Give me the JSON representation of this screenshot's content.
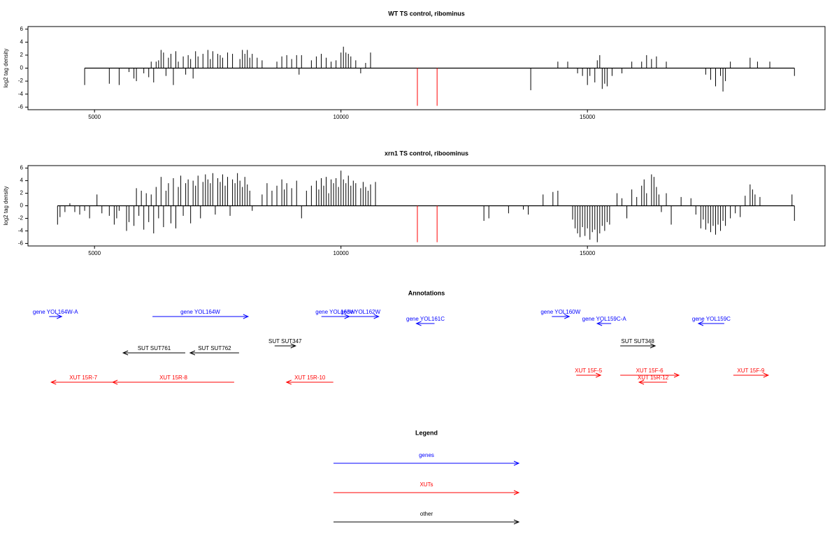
{
  "chart_data": [
    {
      "type": "bar",
      "title": "WT TS control, ribominus",
      "ylabel": "log2 tag density",
      "xlim": [
        3650,
        19820
      ],
      "xticks": [
        5000,
        10000,
        15000
      ],
      "ylim": [
        -6.4,
        6.4
      ],
      "yticks": [
        -6,
        -4,
        -2,
        0,
        2,
        4,
        6
      ],
      "series": [
        {
          "color": "#000000",
          "x": [
            4800,
            5300,
            5500,
            5700,
            5800,
            5850,
            6000,
            6100,
            6150,
            6200,
            6250,
            6300,
            6350,
            6400,
            6450,
            6500,
            6550,
            6600,
            6650,
            6700,
            6800,
            6850,
            6900,
            6950,
            7000,
            7050,
            7100,
            7200,
            7300,
            7350,
            7400,
            7500,
            7550,
            7600,
            7700,
            7800,
            7950,
            8000,
            8050,
            8100,
            8150,
            8200,
            8300,
            8400,
            8700,
            8800,
            8900,
            9000,
            9100,
            9150,
            9200,
            9400,
            9500,
            9600,
            9700,
            9800,
            9900,
            10000,
            10050,
            10100,
            10150,
            10200,
            10300,
            10400,
            10500,
            10600,
            13850,
            14400,
            14600,
            14800,
            14900,
            15000,
            15050,
            15150,
            15200,
            15250,
            15300,
            15350,
            15400,
            15500,
            15700,
            15900,
            16100,
            16200,
            16300,
            16400,
            16600,
            17400,
            17500,
            17600,
            17700,
            17750,
            17800,
            17900,
            18300,
            18450,
            18700,
            19200
          ],
          "values": [
            -2.6,
            -2.4,
            -2.6,
            -0.6,
            -1.6,
            -2,
            -0.8,
            -1.4,
            1,
            -2.2,
            1,
            1.2,
            2.8,
            2.4,
            -1.2,
            1.6,
            2.2,
            -2.6,
            2.6,
            1,
            1.8,
            -1,
            2,
            1.4,
            -1.6,
            2.6,
            1.8,
            2.2,
            2.8,
            1.4,
            2.6,
            2.2,
            2,
            1.6,
            2.4,
            2.2,
            1.4,
            2.8,
            2.2,
            2.8,
            1.6,
            2.2,
            1.6,
            1.2,
            1,
            1.8,
            2,
            1.4,
            2,
            -1,
            2,
            1.2,
            1.8,
            2.2,
            1.6,
            1,
            1.2,
            2.4,
            3.3,
            2.4,
            2.2,
            1.8,
            1.2,
            -0.8,
            0.8,
            2.4,
            -3.4,
            1,
            1,
            -0.8,
            -1.2,
            -2.6,
            -1.2,
            -2.2,
            1.2,
            2,
            -3.2,
            -2.4,
            -2.8,
            -1.2,
            -0.8,
            1,
            1,
            2,
            1.4,
            1.8,
            1,
            -1,
            -1.8,
            -2.8,
            -1.2,
            -3.6,
            -2,
            1,
            1.6,
            1,
            1,
            -1.2
          ]
        },
        {
          "color": "#ff0000",
          "x": [
            11550,
            11950
          ],
          "values": [
            -5.8,
            -5.8
          ]
        }
      ]
    },
    {
      "type": "bar",
      "title": "xrn1 TS control, riboominus",
      "ylabel": "log2 tag density",
      "xlim": [
        3650,
        19820
      ],
      "xticks": [
        5000,
        10000,
        15000
      ],
      "ylim": [
        -6.4,
        6.4
      ],
      "yticks": [
        -6,
        -4,
        -2,
        0,
        2,
        4,
        6
      ],
      "series": [
        {
          "color": "#000000",
          "x": [
            4250,
            4300,
            4400,
            4500,
            4600,
            4700,
            4800,
            4900,
            5050,
            5150,
            5300,
            5400,
            5450,
            5500,
            5650,
            5700,
            5800,
            5850,
            5900,
            5950,
            6000,
            6050,
            6100,
            6150,
            6200,
            6250,
            6300,
            6350,
            6400,
            6450,
            6500,
            6550,
            6600,
            6650,
            6700,
            6750,
            6800,
            6850,
            6900,
            6950,
            7000,
            7050,
            7100,
            7150,
            7200,
            7250,
            7300,
            7350,
            7400,
            7450,
            7500,
            7550,
            7600,
            7650,
            7700,
            7750,
            7800,
            7850,
            7900,
            7950,
            8000,
            8050,
            8100,
            8150,
            8200,
            8400,
            8500,
            8600,
            8700,
            8800,
            8850,
            8900,
            9000,
            9100,
            9200,
            9300,
            9400,
            9500,
            9550,
            9600,
            9650,
            9700,
            9750,
            9800,
            9850,
            9900,
            9950,
            10000,
            10050,
            10100,
            10150,
            10200,
            10250,
            10300,
            10400,
            10450,
            10500,
            10550,
            10600,
            10700,
            12900,
            13000,
            13400,
            13700,
            13800,
            14100,
            14300,
            14400,
            14700,
            14750,
            14800,
            14850,
            14900,
            14950,
            15000,
            15050,
            15100,
            15150,
            15200,
            15250,
            15300,
            15350,
            15400,
            15450,
            15600,
            15700,
            15800,
            15900,
            16000,
            16100,
            16150,
            16200,
            16300,
            16350,
            16400,
            16450,
            16500,
            16600,
            16700,
            16900,
            17100,
            17200,
            17300,
            17350,
            17400,
            17450,
            17500,
            17550,
            17600,
            17650,
            17700,
            17750,
            17800,
            17900,
            18000,
            18100,
            18200,
            18300,
            18350,
            18400,
            18500,
            19150,
            19200
          ],
          "values": [
            -3,
            -1.8,
            -1,
            0.4,
            -1,
            -1.4,
            -0.8,
            -2,
            1.8,
            -1.2,
            -1.6,
            -3,
            -2,
            -0.8,
            -4,
            -2.6,
            -3.2,
            2.8,
            -1.6,
            2.4,
            -3.8,
            2,
            -2.6,
            1.8,
            -4.4,
            3,
            -2,
            4.6,
            -3.4,
            2.4,
            3.6,
            -2.8,
            4.4,
            -3.6,
            3,
            4.8,
            -1.6,
            3.6,
            4.2,
            -2.8,
            4,
            3.2,
            4.8,
            -2,
            3.8,
            5,
            4.2,
            3.6,
            5.2,
            -1.4,
            4.4,
            3.8,
            5,
            3.2,
            4.6,
            -1.6,
            4.2,
            3.6,
            5.2,
            4,
            3,
            4.6,
            3.4,
            2.4,
            -0.8,
            1.8,
            3.6,
            2.4,
            3.2,
            4.2,
            2.6,
            3.6,
            2.8,
            4,
            -2,
            2.4,
            3.2,
            4,
            2.6,
            4.4,
            3.2,
            4.6,
            2,
            4.2,
            3.6,
            4.4,
            3,
            5.6,
            4.2,
            3.6,
            4.8,
            3.2,
            4,
            3.6,
            2.8,
            3.8,
            3,
            2.4,
            3.4,
            3.8,
            -2.4,
            -2,
            -1.2,
            -0.6,
            -1.4,
            1.8,
            2.2,
            2.4,
            -2.2,
            -3.6,
            -4.4,
            -5,
            -3.4,
            -4.8,
            -3.6,
            -5.4,
            -4.2,
            -3.8,
            -5.8,
            -4.4,
            -3.2,
            -4,
            -2.6,
            -3,
            2,
            1.2,
            -2,
            2.6,
            1.4,
            3.2,
            4.2,
            2,
            5,
            4.6,
            3,
            1.8,
            -1,
            2,
            -3,
            1.4,
            1.2,
            -1.4,
            -3.6,
            -2.2,
            -3.8,
            -2.8,
            -4.2,
            -3.2,
            -4.6,
            -3,
            -4,
            -2.4,
            -3.2,
            -2,
            -1.2,
            -1.8,
            1.6,
            3.4,
            2.6,
            1.8,
            1.4,
            1.8,
            -2.4
          ]
        },
        {
          "color": "#ff0000",
          "x": [
            11550,
            11950
          ],
          "values": [
            -5.8,
            -5.8
          ]
        }
      ]
    }
  ],
  "annotations": {
    "title": "Annotations",
    "tracks": [
      {
        "color": "#0000ff",
        "features": [
          {
            "label": "gene YOL164W-A",
            "start": 4079,
            "end": 4334
          },
          {
            "label": "gene YOL164W",
            "start": 6176,
            "end": 8116
          },
          {
            "label": "gene YOL163W",
            "start": 9603,
            "end": 10170
          },
          {
            "label": "gene YOL162W",
            "start": 10028,
            "end": 10765
          },
          {
            "label": "gene YOL161C",
            "start": 11898,
            "end": 11530
          },
          {
            "label": "gene YOL160W",
            "start": 14278,
            "end": 14632
          },
          {
            "label": "gene YOL159C-A",
            "start": 15482,
            "end": 15198
          },
          {
            "label": "gene YOL159C",
            "start": 17776,
            "end": 17252
          }
        ]
      },
      {
        "color": "#000000",
        "features": [
          {
            "label": "SUT SUT761",
            "start": 6841,
            "end": 5581
          },
          {
            "label": "SUT SUT762",
            "start": 7932,
            "end": 6940
          },
          {
            "label": "SUT SUT347",
            "start": 8654,
            "end": 9079
          },
          {
            "label": "SUT SUT348",
            "start": 15666,
            "end": 16374
          }
        ]
      },
      {
        "color": "#ff0000",
        "features": [
          {
            "label": "XUT 15R-7",
            "start": 5425,
            "end": 4122
          },
          {
            "label": "XUT 15R-8",
            "start": 7833,
            "end": 5368
          },
          {
            "label": "XUT 15R-10",
            "start": 9844,
            "end": 8895
          },
          {
            "label": "XUT 15F-5",
            "start": 14773,
            "end": 15269
          },
          {
            "label": "XUT 15F-6",
            "start": 15666,
            "end": 16856
          },
          {
            "label": "XUT 15R-12",
            "start": 16615,
            "end": 16048
          },
          {
            "label": "XUT 15F-9",
            "start": 17960,
            "end": 18669
          }
        ]
      }
    ]
  },
  "legend": {
    "title": "Legend",
    "items": [
      {
        "label": "genes",
        "color": "#0000ff"
      },
      {
        "label": "XUTs",
        "color": "#ff0000"
      },
      {
        "label": "other",
        "color": "#000000"
      }
    ]
  }
}
